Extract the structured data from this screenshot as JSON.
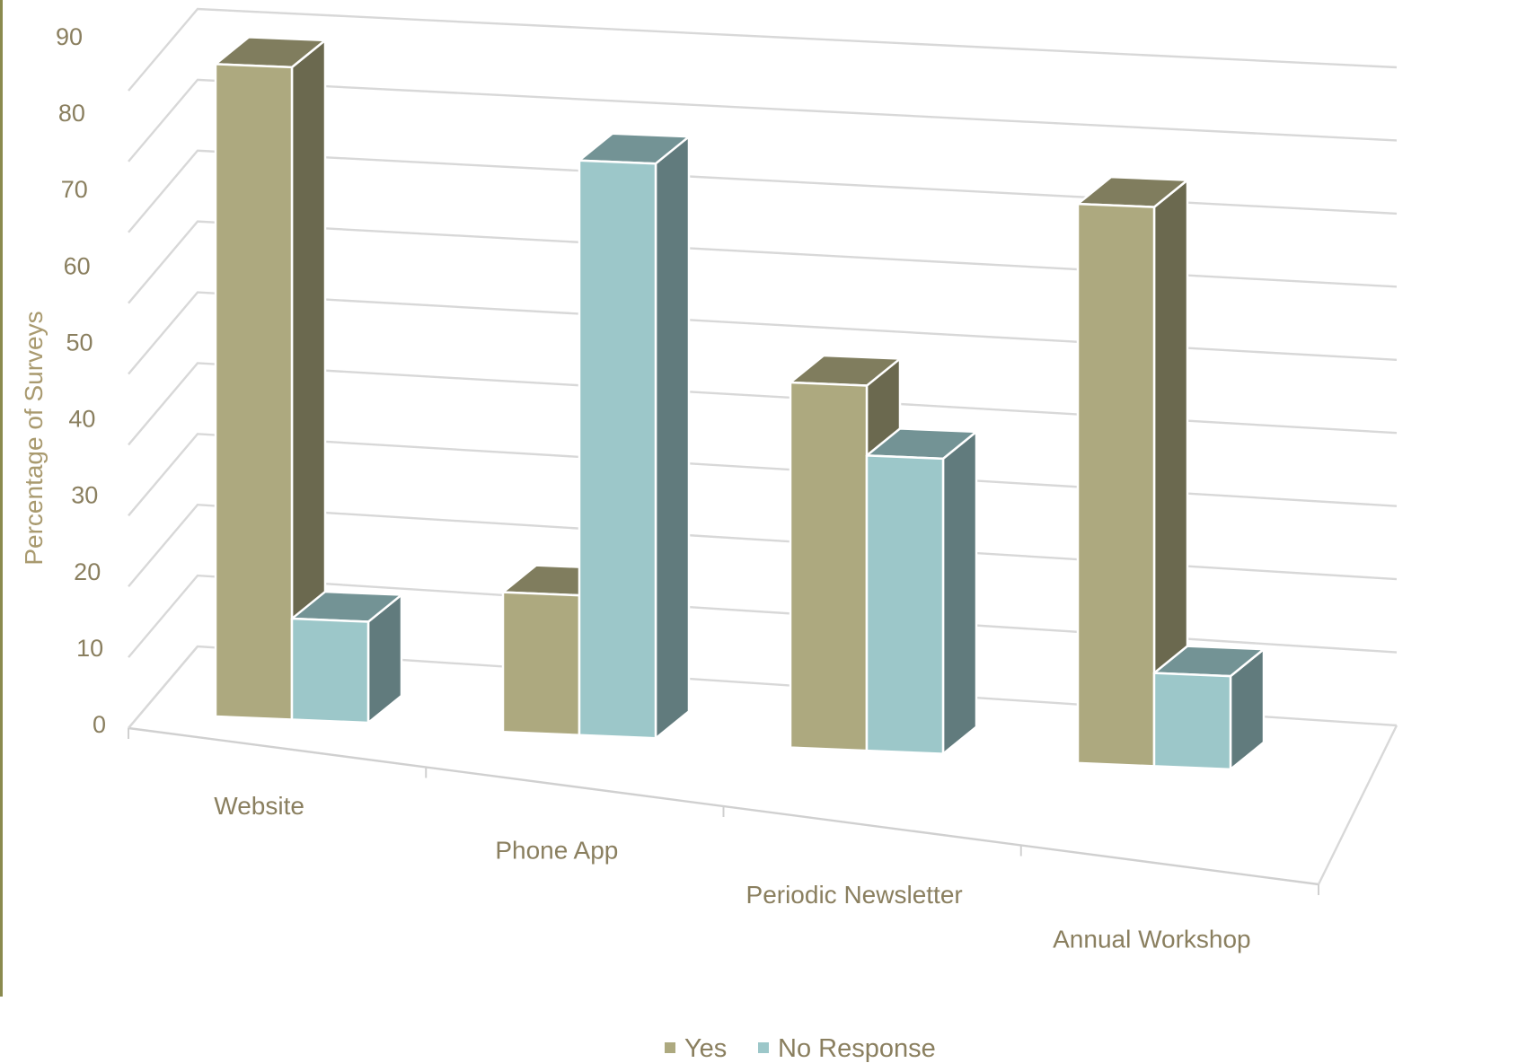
{
  "chart_data": {
    "type": "bar",
    "title": "",
    "xlabel": "",
    "ylabel": "Percentage of Surveys",
    "ylim": [
      0,
      90
    ],
    "y_ticks": [
      "0",
      "10",
      "20",
      "30",
      "40",
      "50",
      "60",
      "70",
      "80",
      "90"
    ],
    "categories": [
      "Website",
      "Phone App",
      "Periodic Newsletter",
      "Annual Workshop"
    ],
    "series": [
      {
        "name": "Yes",
        "values": [
          84,
          18,
          47,
          72
        ],
        "color": "#ada97f"
      },
      {
        "name": "No Response",
        "values": [
          13,
          74,
          38,
          12
        ],
        "color": "#9cc7c9"
      }
    ],
    "grid": true,
    "legend_position": "bottom",
    "style": "3d-clustered-column"
  }
}
